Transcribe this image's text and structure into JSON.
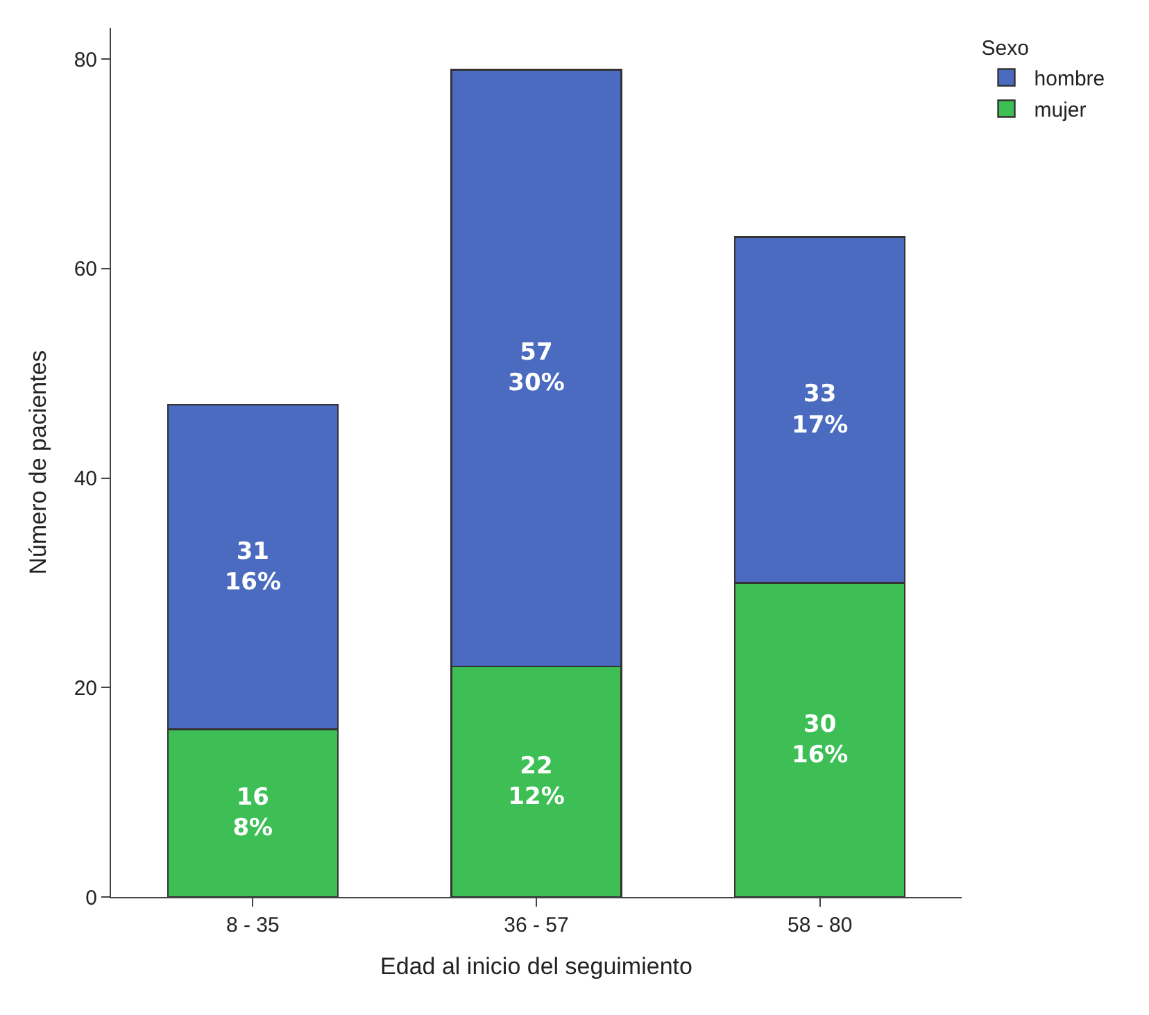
{
  "chart_data": {
    "type": "bar",
    "stacked": true,
    "xlabel": "Edad al inicio del seguimiento",
    "ylabel": "Número de pacientes",
    "legend_title": "Sexo",
    "legend": "top right",
    "categories": [
      "8 - 35",
      "36 - 57",
      "58 - 80"
    ],
    "series": [
      {
        "name": "mujer",
        "color": "#3dbf55",
        "values": [
          16,
          22,
          30
        ],
        "value_labels": [
          "16\n8%",
          "22\n12%",
          "30\n16%"
        ]
      },
      {
        "name": "hombre",
        "color": "#4a6bbf",
        "values": [
          31,
          57,
          33
        ],
        "value_labels": [
          "31\n16%",
          "57\n30%",
          "33\n17%"
        ]
      }
    ],
    "ylim": [
      0,
      83
    ],
    "yticks": [
      0,
      20,
      40,
      60,
      80
    ]
  }
}
